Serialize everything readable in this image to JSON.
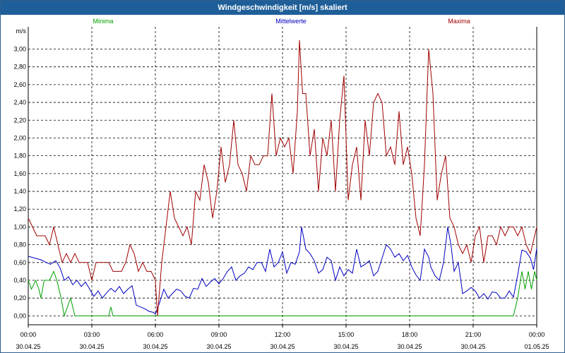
{
  "window": {
    "title": "Windgeschwindigkeit [m/s] skaliert"
  },
  "chart_data": {
    "type": "line",
    "title": "Windgeschwindigkeit [m/s] skaliert",
    "ylabel": "m/s",
    "xlabel": "",
    "ylim": [
      -0.1,
      3.25
    ],
    "xlim": [
      0,
      24
    ],
    "grid": true,
    "legend_position": "top",
    "y_ticks": [
      "0,00",
      "0,20",
      "0,40",
      "0,60",
      "0,80",
      "1,00",
      "1,20",
      "1,40",
      "1,60",
      "1,80",
      "2,00",
      "2,20",
      "2,40",
      "2,60",
      "2,80",
      "3,00"
    ],
    "x_ticks": [
      {
        "x": 0,
        "time": "00:00",
        "date": "30.04.25"
      },
      {
        "x": 3,
        "time": "03:00",
        "date": "30.04.25"
      },
      {
        "x": 6,
        "time": "06:00",
        "date": "30.04.25"
      },
      {
        "x": 9,
        "time": "09:00",
        "date": "30.04.25"
      },
      {
        "x": 12,
        "time": "12:00",
        "date": "30.04.25"
      },
      {
        "x": 15,
        "time": "15:00",
        "date": "30.04.25"
      },
      {
        "x": 18,
        "time": "18:00",
        "date": "30.04.25"
      },
      {
        "x": 21,
        "time": "21:00",
        "date": "30.04.25"
      },
      {
        "x": 24,
        "time": "00:00",
        "date": "01.05.25"
      }
    ],
    "series": [
      {
        "name": "Minima",
        "color": "#00a000",
        "points": [
          [
            0,
            0.4
          ],
          [
            0.15,
            0.3
          ],
          [
            0.35,
            0.4
          ],
          [
            0.5,
            0.3
          ],
          [
            0.6,
            0.2
          ],
          [
            0.75,
            0.4
          ],
          [
            1.0,
            0.4
          ],
          [
            1.2,
            0.5
          ],
          [
            1.35,
            0.4
          ],
          [
            1.55,
            0.2
          ],
          [
            1.7,
            0.0
          ],
          [
            1.85,
            0.1
          ],
          [
            2.0,
            0.2
          ],
          [
            2.2,
            0.0
          ],
          [
            2.5,
            0.0
          ],
          [
            3.0,
            0.0
          ],
          [
            3.5,
            0.0
          ],
          [
            3.8,
            0.0
          ],
          [
            3.9,
            0.1
          ],
          [
            4.0,
            0.0
          ],
          [
            6.0,
            0.0
          ],
          [
            10,
            0.0
          ],
          [
            14,
            0.0
          ],
          [
            18,
            0.0
          ],
          [
            22,
            0.0
          ],
          [
            22.9,
            0.0
          ],
          [
            23.1,
            0.2
          ],
          [
            23.3,
            0.5
          ],
          [
            23.45,
            0.3
          ],
          [
            23.6,
            0.5
          ],
          [
            23.75,
            0.3
          ],
          [
            23.9,
            0.5
          ],
          [
            24.0,
            0.4
          ]
        ]
      },
      {
        "name": "Mittelwerte",
        "color": "#0000c0",
        "points": [
          [
            0,
            0.67
          ],
          [
            0.3,
            0.65
          ],
          [
            0.6,
            0.63
          ],
          [
            0.85,
            0.6
          ],
          [
            1.05,
            0.58
          ],
          [
            1.3,
            0.62
          ],
          [
            1.5,
            0.54
          ],
          [
            1.7,
            0.4
          ],
          [
            1.9,
            0.44
          ],
          [
            2.1,
            0.35
          ],
          [
            2.3,
            0.4
          ],
          [
            2.5,
            0.33
          ],
          [
            2.7,
            0.38
          ],
          [
            2.9,
            0.3
          ],
          [
            3.1,
            0.22
          ],
          [
            3.3,
            0.28
          ],
          [
            3.5,
            0.2
          ],
          [
            3.7,
            0.26
          ],
          [
            3.9,
            0.31
          ],
          [
            4.1,
            0.27
          ],
          [
            4.3,
            0.33
          ],
          [
            4.5,
            0.25
          ],
          [
            4.7,
            0.3
          ],
          [
            4.9,
            0.34
          ],
          [
            5.1,
            0.12
          ],
          [
            5.3,
            0.1
          ],
          [
            5.5,
            0.08
          ],
          [
            5.7,
            0.05
          ],
          [
            5.9,
            0.04
          ],
          [
            6.0,
            0.02
          ],
          [
            6.2,
            0.15
          ],
          [
            6.4,
            0.3
          ],
          [
            6.6,
            0.2
          ],
          [
            6.8,
            0.25
          ],
          [
            7.0,
            0.3
          ],
          [
            7.2,
            0.28
          ],
          [
            7.4,
            0.22
          ],
          [
            7.6,
            0.2
          ],
          [
            7.8,
            0.31
          ],
          [
            8.0,
            0.3
          ],
          [
            8.2,
            0.42
          ],
          [
            8.4,
            0.33
          ],
          [
            8.6,
            0.38
          ],
          [
            8.8,
            0.42
          ],
          [
            9.0,
            0.36
          ],
          [
            9.2,
            0.42
          ],
          [
            9.4,
            0.5
          ],
          [
            9.6,
            0.55
          ],
          [
            9.8,
            0.4
          ],
          [
            10.0,
            0.45
          ],
          [
            10.2,
            0.48
          ],
          [
            10.4,
            0.55
          ],
          [
            10.6,
            0.52
          ],
          [
            10.8,
            0.6
          ],
          [
            11.0,
            0.6
          ],
          [
            11.2,
            0.5
          ],
          [
            11.4,
            0.75
          ],
          [
            11.6,
            0.55
          ],
          [
            11.8,
            0.6
          ],
          [
            12.0,
            0.72
          ],
          [
            12.2,
            0.48
          ],
          [
            12.4,
            0.6
          ],
          [
            12.6,
            0.58
          ],
          [
            12.8,
            0.72
          ],
          [
            12.9,
            1.0
          ],
          [
            13.1,
            0.75
          ],
          [
            13.3,
            0.7
          ],
          [
            13.5,
            0.62
          ],
          [
            13.7,
            0.48
          ],
          [
            13.9,
            0.52
          ],
          [
            14.1,
            0.66
          ],
          [
            14.3,
            0.62
          ],
          [
            14.5,
            0.4
          ],
          [
            14.7,
            0.55
          ],
          [
            14.9,
            0.45
          ],
          [
            15.1,
            0.52
          ],
          [
            15.3,
            0.48
          ],
          [
            15.5,
            0.75
          ],
          [
            15.7,
            0.55
          ],
          [
            15.9,
            0.58
          ],
          [
            16.1,
            0.62
          ],
          [
            16.3,
            0.45
          ],
          [
            16.5,
            0.5
          ],
          [
            16.7,
            0.65
          ],
          [
            16.9,
            0.8
          ],
          [
            17.1,
            0.75
          ],
          [
            17.3,
            0.66
          ],
          [
            17.5,
            0.7
          ],
          [
            17.7,
            0.62
          ],
          [
            17.9,
            0.68
          ],
          [
            18.1,
            0.55
          ],
          [
            18.3,
            0.46
          ],
          [
            18.5,
            0.4
          ],
          [
            18.7,
            0.75
          ],
          [
            18.9,
            0.66
          ],
          [
            19.0,
            0.55
          ],
          [
            19.2,
            0.45
          ],
          [
            19.4,
            0.4
          ],
          [
            19.6,
            0.6
          ],
          [
            19.8,
            1.0
          ],
          [
            19.95,
            0.8
          ],
          [
            20.1,
            0.5
          ],
          [
            20.3,
            0.6
          ],
          [
            20.5,
            0.25
          ],
          [
            20.7,
            0.28
          ],
          [
            20.9,
            0.32
          ],
          [
            21.1,
            0.28
          ],
          [
            21.3,
            0.2
          ],
          [
            21.5,
            0.25
          ],
          [
            21.7,
            0.19
          ],
          [
            21.9,
            0.27
          ],
          [
            22.1,
            0.26
          ],
          [
            22.3,
            0.2
          ],
          [
            22.5,
            0.2
          ],
          [
            22.7,
            0.28
          ],
          [
            22.9,
            0.21
          ],
          [
            23.1,
            0.46
          ],
          [
            23.3,
            0.74
          ],
          [
            23.5,
            0.72
          ],
          [
            23.7,
            0.65
          ],
          [
            23.85,
            0.52
          ],
          [
            24.0,
            0.76
          ]
        ]
      },
      {
        "name": "Maxima",
        "color": "#a00000",
        "points": [
          [
            0,
            1.1
          ],
          [
            0.2,
            1.0
          ],
          [
            0.4,
            0.9
          ],
          [
            0.6,
            0.9
          ],
          [
            0.8,
            0.9
          ],
          [
            1.0,
            0.8
          ],
          [
            1.2,
            1.0
          ],
          [
            1.4,
            0.8
          ],
          [
            1.6,
            0.6
          ],
          [
            1.8,
            0.7
          ],
          [
            2.0,
            0.6
          ],
          [
            2.2,
            0.7
          ],
          [
            2.4,
            0.6
          ],
          [
            2.6,
            0.6
          ],
          [
            2.8,
            0.6
          ],
          [
            3.0,
            0.4
          ],
          [
            3.2,
            0.6
          ],
          [
            3.4,
            0.6
          ],
          [
            3.6,
            0.6
          ],
          [
            3.8,
            0.6
          ],
          [
            4.0,
            0.5
          ],
          [
            4.2,
            0.5
          ],
          [
            4.4,
            0.5
          ],
          [
            4.6,
            0.6
          ],
          [
            4.8,
            0.8
          ],
          [
            5.0,
            0.7
          ],
          [
            5.2,
            0.5
          ],
          [
            5.4,
            0.6
          ],
          [
            5.6,
            0.5
          ],
          [
            5.8,
            0.5
          ],
          [
            6.0,
            0.4
          ],
          [
            6.1,
            0.0
          ],
          [
            6.3,
            0.6
          ],
          [
            6.5,
            1.0
          ],
          [
            6.7,
            1.4
          ],
          [
            6.9,
            1.1
          ],
          [
            7.1,
            1.0
          ],
          [
            7.3,
            0.9
          ],
          [
            7.5,
            1.0
          ],
          [
            7.7,
            0.8
          ],
          [
            7.9,
            1.4
          ],
          [
            8.1,
            1.3
          ],
          [
            8.3,
            1.7
          ],
          [
            8.5,
            1.5
          ],
          [
            8.7,
            1.1
          ],
          [
            8.9,
            1.4
          ],
          [
            9.1,
            1.9
          ],
          [
            9.3,
            1.5
          ],
          [
            9.5,
            1.7
          ],
          [
            9.7,
            2.2
          ],
          [
            9.9,
            1.7
          ],
          [
            10.1,
            1.6
          ],
          [
            10.3,
            1.4
          ],
          [
            10.5,
            1.8
          ],
          [
            10.7,
            1.7
          ],
          [
            10.9,
            1.7
          ],
          [
            11.1,
            1.8
          ],
          [
            11.3,
            1.8
          ],
          [
            11.5,
            2.5
          ],
          [
            11.7,
            1.8
          ],
          [
            11.9,
            2.0
          ],
          [
            12.1,
            1.9
          ],
          [
            12.3,
            2.0
          ],
          [
            12.5,
            1.6
          ],
          [
            12.7,
            2.3
          ],
          [
            12.8,
            3.1
          ],
          [
            12.95,
            2.5
          ],
          [
            13.1,
            2.5
          ],
          [
            13.3,
            1.8
          ],
          [
            13.5,
            2.1
          ],
          [
            13.7,
            1.4
          ],
          [
            13.9,
            2.0
          ],
          [
            14.1,
            1.8
          ],
          [
            14.3,
            2.2
          ],
          [
            14.5,
            1.4
          ],
          [
            14.7,
            2.2
          ],
          [
            14.9,
            2.7
          ],
          [
            15.1,
            1.3
          ],
          [
            15.3,
            1.7
          ],
          [
            15.5,
            1.9
          ],
          [
            15.7,
            1.3
          ],
          [
            15.9,
            2.2
          ],
          [
            16.1,
            1.8
          ],
          [
            16.3,
            2.4
          ],
          [
            16.5,
            2.5
          ],
          [
            16.7,
            2.4
          ],
          [
            16.9,
            1.8
          ],
          [
            17.1,
            1.9
          ],
          [
            17.3,
            1.7
          ],
          [
            17.5,
            2.3
          ],
          [
            17.7,
            1.7
          ],
          [
            17.9,
            1.9
          ],
          [
            18.1,
            1.6
          ],
          [
            18.3,
            1.1
          ],
          [
            18.5,
            0.9
          ],
          [
            18.7,
            1.7
          ],
          [
            18.9,
            3.0
          ],
          [
            19.1,
            2.5
          ],
          [
            19.3,
            1.3
          ],
          [
            19.5,
            1.6
          ],
          [
            19.7,
            1.8
          ],
          [
            19.9,
            1.1
          ],
          [
            20.1,
            1.0
          ],
          [
            20.3,
            0.8
          ],
          [
            20.5,
            0.7
          ],
          [
            20.7,
            0.8
          ],
          [
            20.9,
            0.6
          ],
          [
            21.1,
            0.9
          ],
          [
            21.3,
            1.0
          ],
          [
            21.5,
            0.6
          ],
          [
            21.7,
            0.9
          ],
          [
            21.9,
            0.9
          ],
          [
            22.1,
            0.8
          ],
          [
            22.3,
            1.0
          ],
          [
            22.5,
            0.9
          ],
          [
            22.7,
            1.0
          ],
          [
            22.9,
            1.0
          ],
          [
            23.1,
            0.9
          ],
          [
            23.3,
            1.0
          ],
          [
            23.5,
            0.8
          ],
          [
            23.7,
            0.7
          ],
          [
            23.9,
            0.9
          ],
          [
            24.0,
            1.0
          ]
        ]
      }
    ]
  }
}
